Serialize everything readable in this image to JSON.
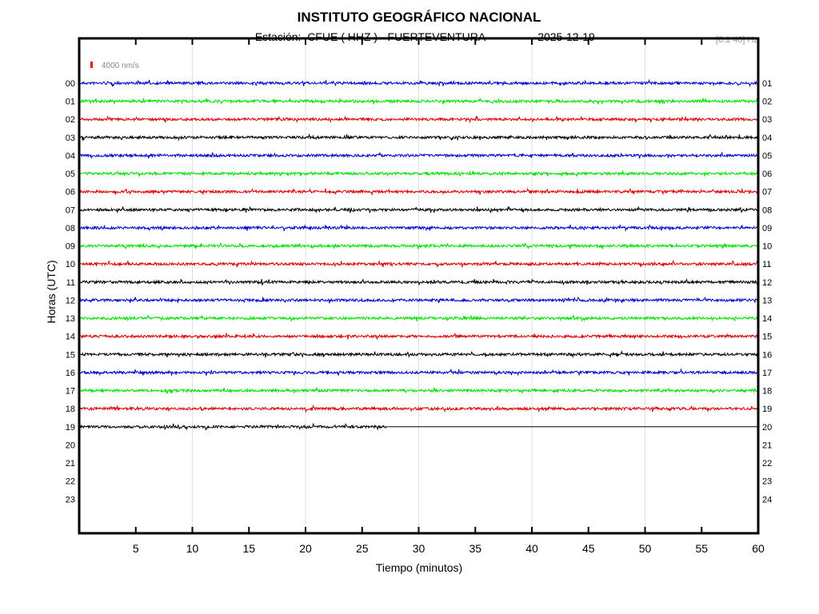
{
  "chart_data": {
    "type": "line",
    "subtype": "helicorder",
    "title": "INSTITUTO GEOGRÁFICO NACIONAL",
    "subtitle_station": "Estación:  CFUE ( HHZ ) - FUERTEVENTURA",
    "subtitle_date": "2025-12-19",
    "filter_label": "[0.1 40] Hz",
    "scale_label": "4000 nm/s",
    "scale_color": "#ff0000",
    "xlabel": "Tiempo (minutos)",
    "ylabel": "Horas (UTC)",
    "xlim": [
      0,
      60
    ],
    "x_ticks": [
      5,
      10,
      15,
      20,
      25,
      30,
      35,
      40,
      45,
      50,
      55,
      60
    ],
    "grid_every_minutes": 10,
    "left_labels": [
      "00",
      "01",
      "02",
      "03",
      "04",
      "05",
      "06",
      "07",
      "08",
      "09",
      "10",
      "11",
      "12",
      "13",
      "14",
      "15",
      "16",
      "17",
      "18",
      "19",
      "20",
      "21",
      "22",
      "23"
    ],
    "right_labels": [
      "01",
      "02",
      "03",
      "04",
      "05",
      "06",
      "07",
      "08",
      "09",
      "10",
      "11",
      "12",
      "13",
      "14",
      "15",
      "16",
      "17",
      "18",
      "19",
      "20",
      "21",
      "22",
      "23",
      "24"
    ],
    "trace_colors": [
      "#0000cc",
      "#00e000",
      "#dd0000",
      "#000000"
    ],
    "rows_with_data": 20,
    "last_row_data_end_minute": 27.3,
    "last_row_flat_to_minute": 60
  }
}
